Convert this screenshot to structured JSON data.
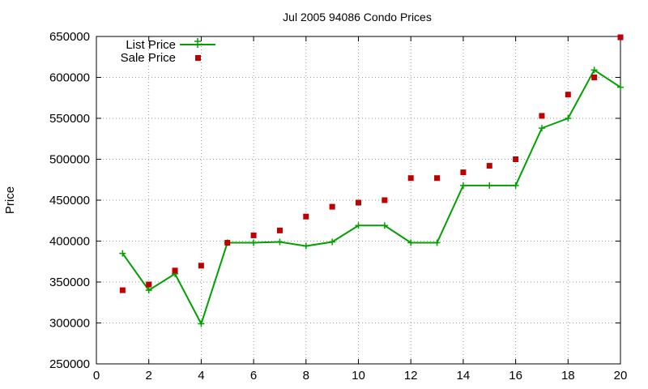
{
  "chart_data": {
    "type": "line",
    "title": "Jul 2005 94086 Condo Prices",
    "xlabel": "",
    "ylabel": "Price",
    "xlim": [
      0,
      20
    ],
    "ylim": [
      250000,
      650000
    ],
    "xticks": [
      0,
      2,
      4,
      6,
      8,
      10,
      12,
      14,
      16,
      18,
      20
    ],
    "yticks": [
      250000,
      300000,
      350000,
      400000,
      450000,
      500000,
      550000,
      600000,
      650000
    ],
    "grid": true,
    "legend_position": "top-left",
    "series": [
      {
        "name": "List Price",
        "style": "line-with-plus-markers",
        "color": "#00a000",
        "x": [
          1,
          2,
          3,
          4,
          5,
          6,
          7,
          8,
          9,
          10,
          11,
          12,
          13,
          14,
          15,
          16,
          17,
          18,
          19,
          20
        ],
        "y": [
          385000,
          340000,
          360000,
          299000,
          398000,
          398000,
          399000,
          394000,
          399000,
          419000,
          419000,
          398000,
          398000,
          468000,
          468000,
          468000,
          538000,
          550000,
          609000,
          588000
        ]
      },
      {
        "name": "Sale Price",
        "style": "square-markers",
        "color": "#c00000",
        "x": [
          1,
          2,
          3,
          4,
          5,
          6,
          7,
          8,
          9,
          10,
          11,
          12,
          13,
          14,
          15,
          16,
          17,
          18,
          19,
          20
        ],
        "y": [
          340000,
          347000,
          364000,
          370000,
          398000,
          407000,
          413000,
          430000,
          442000,
          447000,
          450000,
          477000,
          477000,
          484000,
          492000,
          500000,
          553000,
          579000,
          600000,
          649000
        ]
      }
    ]
  }
}
